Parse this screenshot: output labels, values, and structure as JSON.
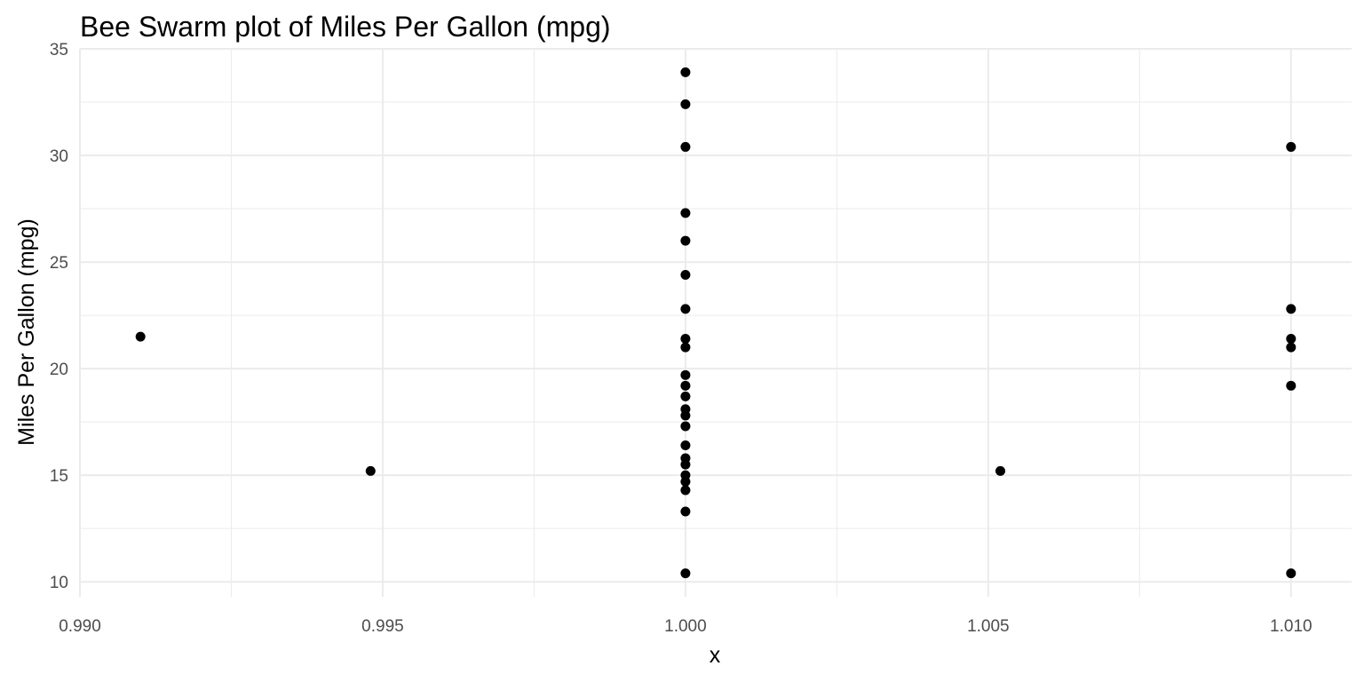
{
  "chart_data": {
    "type": "scatter",
    "title": "Bee Swarm plot of Miles Per Gallon (mpg)",
    "xlabel": "x",
    "ylabel": "Miles Per Gallon (mpg)",
    "xlim": [
      0.99,
      1.011
    ],
    "ylim": [
      9.3,
      35
    ],
    "x_ticks": [
      0.99,
      0.995,
      1.0,
      1.005,
      1.01
    ],
    "x_tick_labels": [
      "0.990",
      "0.995",
      "1.000",
      "1.005",
      "1.010"
    ],
    "y_ticks": [
      10,
      15,
      20,
      25,
      30,
      35
    ],
    "y_tick_labels": [
      "10",
      "15",
      "20",
      "25",
      "30",
      "35"
    ],
    "grid": true,
    "point_color": "#000000",
    "points": [
      {
        "x": 0.991,
        "y": 21.5
      },
      {
        "x": 0.9948,
        "y": 15.2
      },
      {
        "x": 1.0,
        "y": 33.9
      },
      {
        "x": 1.0,
        "y": 32.4
      },
      {
        "x": 1.0,
        "y": 30.4
      },
      {
        "x": 1.0,
        "y": 27.3
      },
      {
        "x": 1.0,
        "y": 26.0
      },
      {
        "x": 1.0,
        "y": 24.4
      },
      {
        "x": 1.0,
        "y": 22.8
      },
      {
        "x": 1.0,
        "y": 21.4
      },
      {
        "x": 1.0,
        "y": 21.0
      },
      {
        "x": 1.0,
        "y": 19.7
      },
      {
        "x": 1.0,
        "y": 19.2
      },
      {
        "x": 1.0,
        "y": 18.7
      },
      {
        "x": 1.0,
        "y": 18.1
      },
      {
        "x": 1.0,
        "y": 17.8
      },
      {
        "x": 1.0,
        "y": 17.3
      },
      {
        "x": 1.0,
        "y": 16.4
      },
      {
        "x": 1.0,
        "y": 15.8
      },
      {
        "x": 1.0,
        "y": 15.5
      },
      {
        "x": 1.0,
        "y": 15.0
      },
      {
        "x": 1.0,
        "y": 14.7
      },
      {
        "x": 1.0,
        "y": 14.3
      },
      {
        "x": 1.0,
        "y": 13.3
      },
      {
        "x": 1.0,
        "y": 10.4
      },
      {
        "x": 1.0052,
        "y": 15.2
      },
      {
        "x": 1.01,
        "y": 30.4
      },
      {
        "x": 1.01,
        "y": 22.8
      },
      {
        "x": 1.01,
        "y": 21.4
      },
      {
        "x": 1.01,
        "y": 21.0
      },
      {
        "x": 1.01,
        "y": 19.2
      },
      {
        "x": 1.01,
        "y": 10.4
      }
    ]
  }
}
